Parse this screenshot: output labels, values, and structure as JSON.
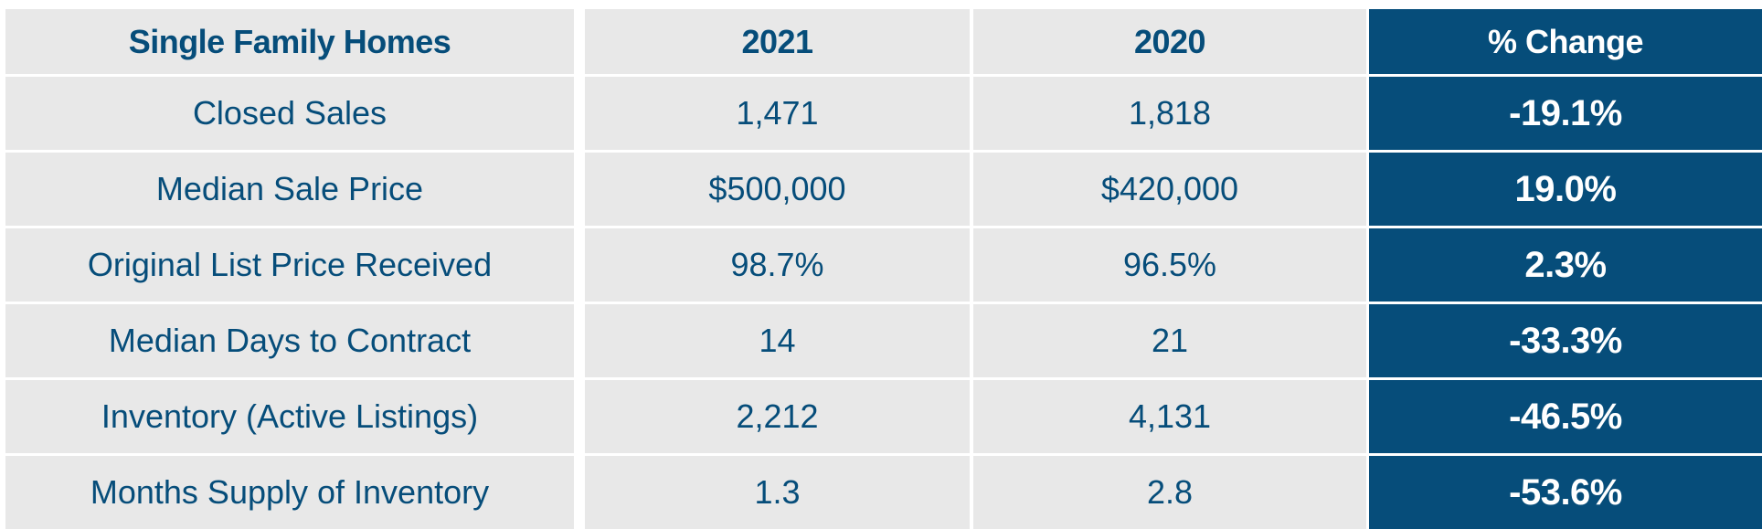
{
  "chart_data": {
    "type": "table",
    "columns": [
      "Single Family Homes",
      "2021",
      "2020",
      "% Change"
    ],
    "rows": [
      [
        "Closed Sales",
        "1,471",
        "1,818",
        "-19.1%"
      ],
      [
        "Median Sale Price",
        "$500,000",
        "$420,000",
        "19.0%"
      ],
      [
        "Original List Price Received",
        "98.7%",
        "96.5%",
        "2.3%"
      ],
      [
        "Median Days to Contract",
        "14",
        "21",
        "-33.3%"
      ],
      [
        "Inventory (Active Listings)",
        "2,212",
        "4,131",
        "-46.5%"
      ],
      [
        "Months Supply of Inventory",
        "1.3",
        "2.8",
        "-53.6%"
      ]
    ]
  },
  "colors": {
    "accent": "#064d7a",
    "cell_background": "#e8e8e8",
    "accent_text": "#ffffff"
  }
}
